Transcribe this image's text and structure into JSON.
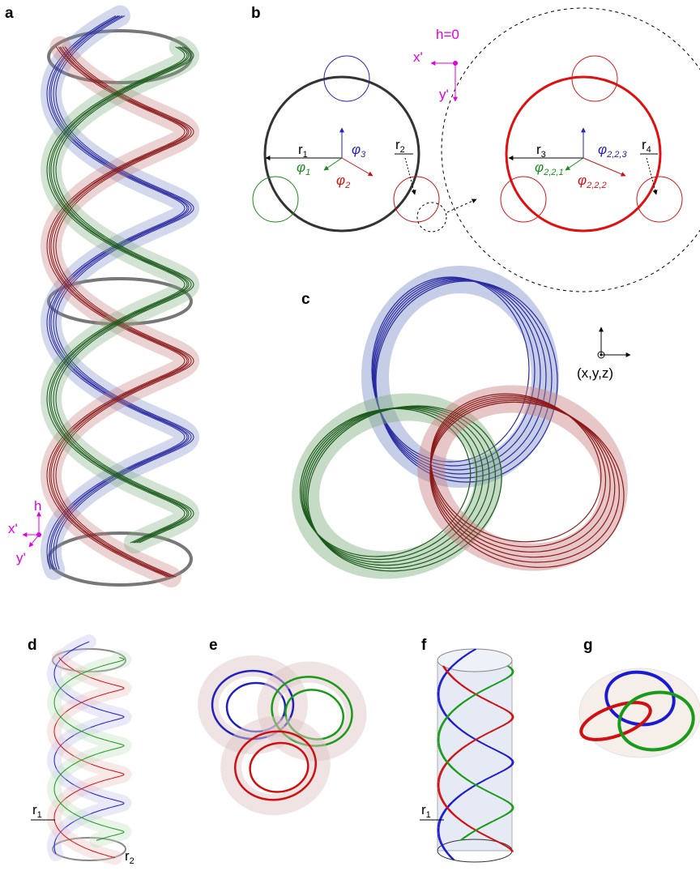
{
  "panel_labels": [
    "a",
    "b",
    "c",
    "d",
    "e",
    "f",
    "g"
  ],
  "panel_a": {
    "h": "h",
    "x": "x'",
    "y": "y'"
  },
  "panel_b": {
    "h0": "h=0",
    "x": "x'",
    "y": "y'",
    "radii": [
      {
        "base": "r",
        "sub": "1"
      },
      {
        "base": "r",
        "sub": "2"
      },
      {
        "base": "r",
        "sub": "3"
      },
      {
        "base": "r",
        "sub": "4"
      }
    ],
    "angles": [
      {
        "base": "φ",
        "sub": "1"
      },
      {
        "base": "φ",
        "sub": "2"
      },
      {
        "base": "φ",
        "sub": "3"
      },
      {
        "base": "φ",
        "sub": "2,2,1"
      },
      {
        "base": "φ",
        "sub": "2,2,2"
      },
      {
        "base": "φ",
        "sub": "2,2,3"
      }
    ]
  },
  "panel_c": {
    "axes": "(x,y,z)"
  },
  "panel_d": {
    "radii": [
      {
        "base": "r",
        "sub": "1"
      },
      {
        "base": "r",
        "sub": "2"
      }
    ]
  },
  "panel_f": {
    "radii": [
      {
        "base": "r",
        "sub": "1"
      }
    ]
  }
}
